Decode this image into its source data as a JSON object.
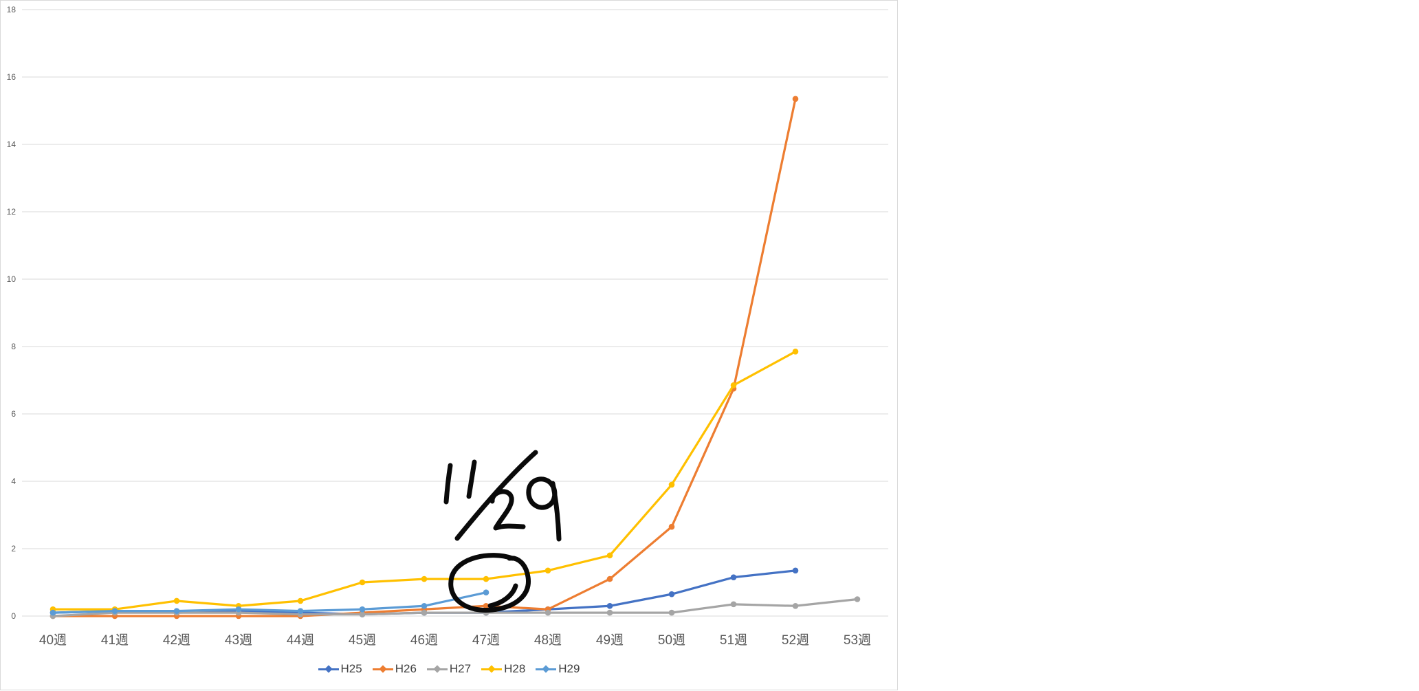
{
  "chart_data": {
    "type": "line",
    "title": "",
    "xlabel": "",
    "ylabel": "",
    "categories": [
      "40週",
      "41週",
      "42週",
      "43週",
      "44週",
      "45週",
      "46週",
      "47週",
      "48週",
      "49週",
      "50週",
      "51週",
      "52週",
      "53週"
    ],
    "series": [
      {
        "name": "H25",
        "color": "#4472C4",
        "values": [
          0.1,
          0.15,
          0.1,
          0.15,
          0.1,
          0.05,
          0.1,
          0.1,
          0.2,
          0.3,
          0.65,
          1.15,
          1.35,
          null
        ]
      },
      {
        "name": "H26",
        "color": "#ED7D31",
        "values": [
          0.0,
          0.0,
          0.0,
          0.0,
          0.0,
          0.1,
          0.2,
          0.3,
          0.2,
          1.1,
          2.65,
          6.75,
          15.35,
          null
        ]
      },
      {
        "name": "H27",
        "color": "#A5A5A5",
        "values": [
          0.0,
          0.1,
          0.1,
          0.1,
          0.05,
          0.05,
          0.1,
          0.1,
          0.1,
          0.1,
          0.1,
          0.35,
          0.3,
          0.5
        ]
      },
      {
        "name": "H28",
        "color": "#FFC000",
        "values": [
          0.2,
          0.2,
          0.45,
          0.3,
          0.45,
          1.0,
          1.1,
          1.1,
          1.35,
          1.8,
          3.9,
          6.85,
          7.85,
          null
        ]
      },
      {
        "name": "H29",
        "color": "#5B9BD5",
        "values": [
          0.1,
          0.15,
          0.15,
          0.2,
          0.15,
          0.2,
          0.3,
          0.7,
          null,
          null,
          null,
          null,
          null,
          null
        ]
      }
    ],
    "ylim": [
      0,
      18
    ],
    "ytick_step": 2,
    "ytick_labels": [
      "0",
      "2",
      "4",
      "6",
      "8",
      "10",
      "12",
      "14",
      "16",
      "18"
    ],
    "grid": true,
    "legend_position": "bottom"
  },
  "annotation": {
    "text": "11/29",
    "circled_category": "47週"
  },
  "colors": {
    "axis_text": "#595959",
    "legend_text": "#404040",
    "gridline": "#d9d9d9",
    "chart_border": "#d9d9d9",
    "ink": "#0a0a0a",
    "background": "#ffffff"
  }
}
